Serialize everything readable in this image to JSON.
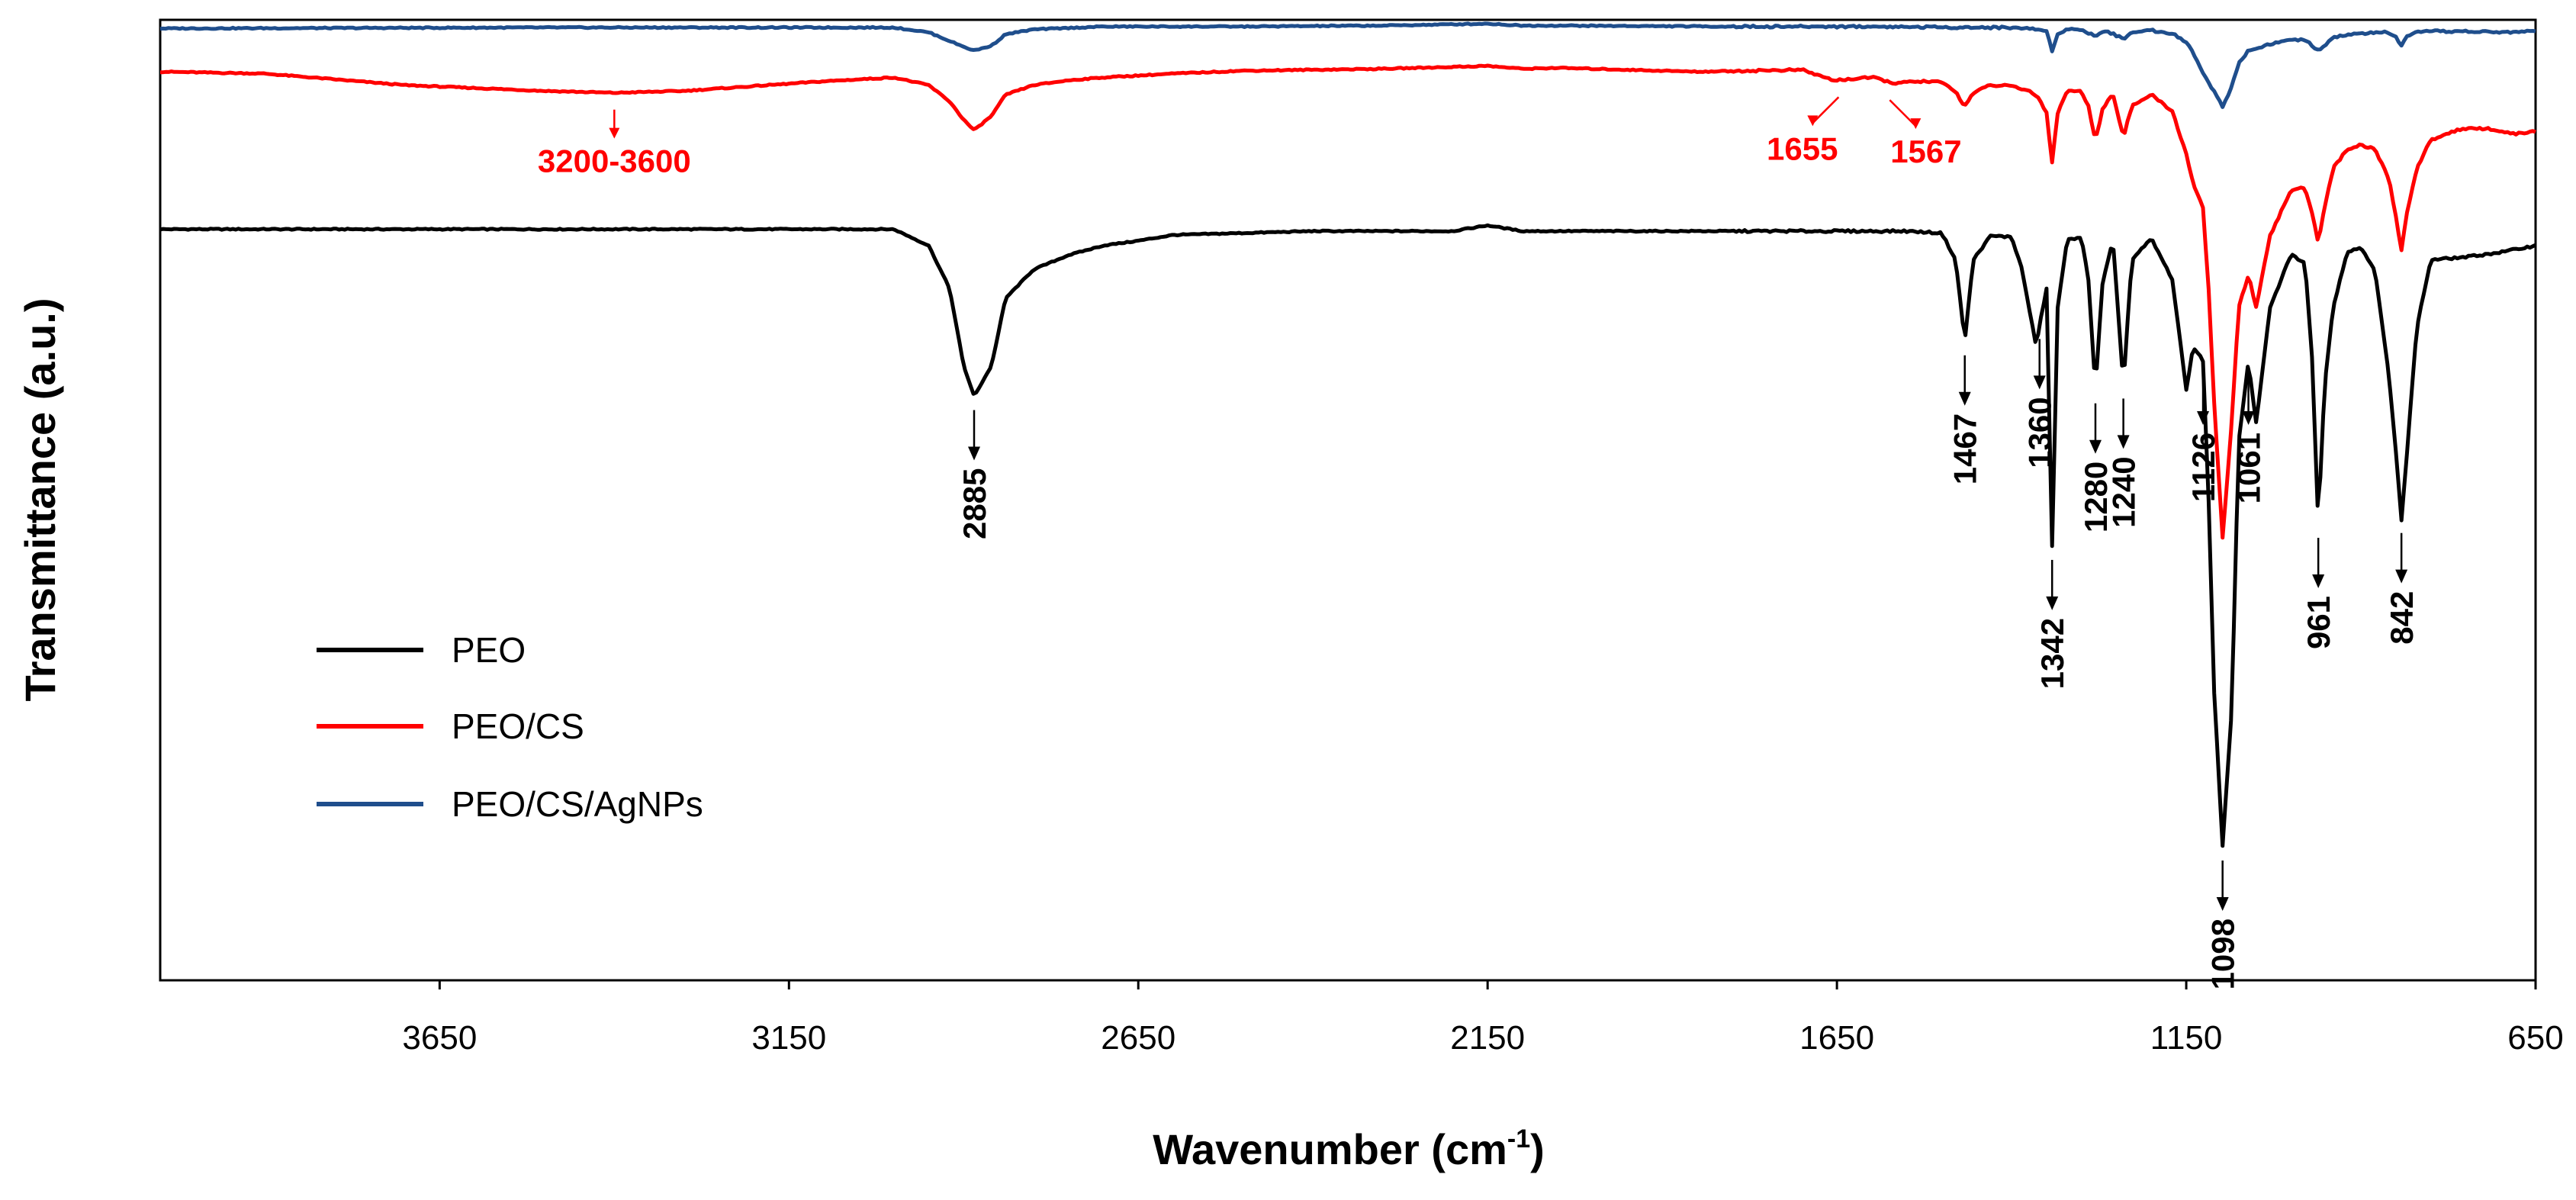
{
  "chart_data": {
    "type": "line",
    "xlabel": "Wavenumber (cm",
    "xlabel_sup": "-1",
    "xlabel_end": ")",
    "ylabel": "Transmittance (a.u.)",
    "xlim": [
      4050,
      650
    ],
    "ylim": [
      0,
      100
    ],
    "x_ticks": [
      3650,
      3150,
      2650,
      2150,
      1650,
      1150,
      650
    ],
    "x_tick_labels": [
      "3650",
      "3150",
      "2650",
      "2150",
      "1650",
      "1150",
      "650"
    ],
    "grid": false,
    "legend_position": "bottom-left",
    "series": [
      {
        "name": "PEO",
        "color": "#000000",
        "baseline": 78.2,
        "x": [
          4050,
          3000,
          2950,
          2920,
          2900,
          2885,
          2860,
          2840,
          2800,
          2750,
          2700,
          2650,
          2600,
          2500,
          2400,
          2300,
          2200,
          2150,
          2100,
          1700,
          1550,
          1500,
          1480,
          1467,
          1455,
          1430,
          1400,
          1385,
          1365,
          1360,
          1350,
          1342,
          1334,
          1320,
          1300,
          1290,
          1280,
          1270,
          1255,
          1240,
          1228,
          1200,
          1170,
          1150,
          1140,
          1126,
          1118,
          1110,
          1098,
          1085,
          1075,
          1061,
          1050,
          1030,
          1000,
          980,
          970,
          961,
          952,
          940,
          920,
          900,
          880,
          860,
          850,
          842,
          834,
          820,
          800,
          750,
          700,
          650
        ],
        "y": [
          78.2,
          78.2,
          76.5,
          72,
          64,
          60.8,
          64,
          71,
          74,
          75.5,
          76.5,
          77,
          77.6,
          77.8,
          78,
          78,
          78,
          78.6,
          78,
          78,
          78,
          77.8,
          75,
          66.5,
          75,
          77.5,
          77.4,
          74,
          66,
          68.2,
          72,
          45.2,
          70,
          77.3,
          77.2,
          73,
          61.5,
          72.5,
          77,
          62,
          75,
          77.2,
          73,
          61.5,
          66,
          64.5,
          50,
          30,
          13.9,
          28,
          56,
          64.5,
          58,
          70,
          75.6,
          74.6,
          65,
          47.5,
          62,
          70,
          75.8,
          76.3,
          74,
          63,
          55,
          48,
          55,
          68,
          75,
          75.3,
          75.8,
          76.5
        ]
      },
      {
        "name": "PEO/CS",
        "color": "#ff0000",
        "baseline": 94.6,
        "x": [
          4050,
          3900,
          3700,
          3500,
          3400,
          3300,
          3200,
          3100,
          3000,
          2950,
          2920,
          2900,
          2885,
          2860,
          2840,
          2800,
          2750,
          2700,
          2650,
          2600,
          2500,
          2300,
          2150,
          2100,
          2050,
          1850,
          1700,
          1655,
          1600,
          1567,
          1530,
          1500,
          1480,
          1467,
          1455,
          1430,
          1400,
          1375,
          1360,
          1350,
          1342,
          1334,
          1320,
          1300,
          1290,
          1280,
          1270,
          1255,
          1240,
          1228,
          1200,
          1170,
          1150,
          1140,
          1126,
          1118,
          1110,
          1098,
          1085,
          1075,
          1061,
          1050,
          1030,
          1000,
          980,
          970,
          961,
          952,
          940,
          920,
          900,
          880,
          860,
          850,
          842,
          834,
          820,
          800,
          760,
          720,
          680,
          650
        ],
        "y": [
          94.6,
          94.4,
          93.2,
          92.6,
          92.4,
          92.6,
          93.1,
          93.6,
          94,
          93.2,
          91.5,
          89.6,
          88.5,
          90,
          92.2,
          93.2,
          93.7,
          94,
          94.2,
          94.4,
          94.7,
          94.9,
          95.2,
          94.9,
          95,
          94.6,
          94.8,
          93.7,
          94,
          93.4,
          93.6,
          93.5,
          92.5,
          91,
          92.4,
          93.2,
          93.1,
          92.6,
          91.8,
          90.3,
          85.2,
          90.3,
          92.7,
          92.5,
          91,
          87.5,
          90.6,
          92.4,
          87.8,
          91,
          92.2,
          90.5,
          86,
          83,
          80.4,
          72,
          60,
          46,
          58,
          70,
          73.5,
          70,
          77.5,
          82.3,
          82.5,
          80,
          76.8,
          80.5,
          84.5,
          86.5,
          87,
          86.5,
          83.5,
          79.5,
          76,
          80,
          84.5,
          87.5,
          88.6,
          88.7,
          88.1,
          88.4
        ]
      },
      {
        "name": "PEO/CS/AgNPs",
        "color": "#1f4e8c",
        "baseline": 99.1,
        "x": [
          4050,
          3500,
          3000,
          2950,
          2920,
          2900,
          2885,
          2860,
          2840,
          2800,
          2700,
          2500,
          2300,
          2150,
          2100,
          2050,
          1800,
          1600,
          1450,
          1400,
          1360,
          1350,
          1342,
          1334,
          1320,
          1300,
          1280,
          1265,
          1240,
          1225,
          1200,
          1170,
          1150,
          1140,
          1126,
          1110,
          1098,
          1085,
          1075,
          1061,
          1050,
          1030,
          1000,
          980,
          961,
          952,
          940,
          900,
          860,
          850,
          842,
          834,
          820,
          800,
          750,
          700,
          650
        ],
        "y": [
          99.1,
          99.2,
          99.2,
          98.7,
          97.8,
          97.2,
          96.8,
          97.3,
          98.5,
          99,
          99.3,
          99.3,
          99.4,
          99.6,
          99.4,
          99.4,
          99.3,
          99.3,
          99.2,
          99.2,
          99,
          98.8,
          96.8,
          98.6,
          99,
          99,
          98.3,
          98.9,
          98,
          98.8,
          98.9,
          98.6,
          97.7,
          96.5,
          94.5,
          92.5,
          91,
          93,
          95.5,
          96.8,
          97,
          97.5,
          97.9,
          97.9,
          96.8,
          97.2,
          98.2,
          98.6,
          98.7,
          98.2,
          97.3,
          98.2,
          98.7,
          98.8,
          98.8,
          98.7,
          98.8
        ]
      }
    ],
    "annotations": [
      {
        "text": "3200-3600",
        "x": 3400,
        "series": "PEO/CS",
        "color": "#ff0000",
        "rotate": false
      },
      {
        "text": "1655",
        "x": 1655,
        "series": "PEO/CS",
        "color": "#ff0000",
        "rotate": false
      },
      {
        "text": "1567",
        "x": 1567,
        "series": "PEO/CS",
        "color": "#ff0000",
        "rotate": false
      },
      {
        "text": "2885",
        "x": 2885,
        "series": "PEO",
        "color": "#000000",
        "rotate": true
      },
      {
        "text": "1467",
        "x": 1467,
        "series": "PEO",
        "color": "#000000",
        "rotate": true
      },
      {
        "text": "1360",
        "x": 1360,
        "series": "PEO",
        "color": "#000000",
        "rotate": true
      },
      {
        "text": "1342",
        "x": 1342,
        "series": "PEO",
        "color": "#000000",
        "rotate": true
      },
      {
        "text": "1280",
        "x": 1280,
        "series": "PEO",
        "color": "#000000",
        "rotate": true
      },
      {
        "text": "1240",
        "x": 1240,
        "series": "PEO",
        "color": "#000000",
        "rotate": true
      },
      {
        "text": "1126",
        "x": 1126,
        "series": "PEO",
        "color": "#000000",
        "rotate": true
      },
      {
        "text": "1098",
        "x": 1098,
        "series": "PEO",
        "color": "#000000",
        "rotate": true
      },
      {
        "text": "1061",
        "x": 1061,
        "series": "PEO",
        "color": "#000000",
        "rotate": true
      },
      {
        "text": "961",
        "x": 961,
        "series": "PEO",
        "color": "#000000",
        "rotate": true
      },
      {
        "text": "842",
        "x": 842,
        "series": "PEO",
        "color": "#000000",
        "rotate": true
      }
    ]
  }
}
